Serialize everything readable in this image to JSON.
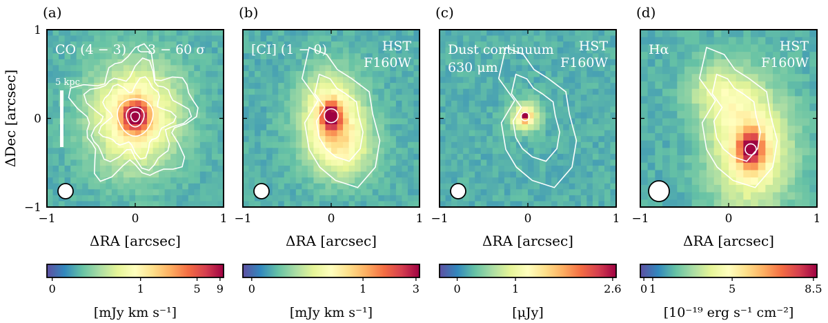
{
  "panels": [
    {
      "letter": "(a)",
      "label_lines": [
        "CO (4 − 3)",
        "3 − 60 σ"
      ],
      "right_lines": [],
      "scalebar": "5 kpc",
      "peak": [
        0.0,
        0.02
      ],
      "extent": [
        0.62,
        0.72
      ],
      "lobe": [
        0.0,
        0.0
      ],
      "cbar_ticks": [
        "0",
        "1",
        "5",
        "9"
      ],
      "cbar_tick_pos": [
        0.03,
        0.53,
        0.85,
        0.98
      ],
      "cbar_label": "[mJy km s⁻¹]",
      "colormap": "Spectral_r"
    },
    {
      "letter": "(b)",
      "label_lines": [
        "[CI] (1 − 0)"
      ],
      "right_lines": [
        "HST",
        "F160W"
      ],
      "scalebar": "",
      "peak": [
        0.0,
        0.03
      ],
      "extent": [
        0.42,
        0.58
      ],
      "lobe": [
        0.15,
        -0.35
      ],
      "cbar_ticks": [
        "0",
        "1",
        "3"
      ],
      "cbar_tick_pos": [
        0.05,
        0.68,
        0.98
      ],
      "cbar_label": "[mJy km s⁻¹]",
      "colormap": "Spectral_r"
    },
    {
      "letter": "(c)",
      "label_lines": [
        "Dust continuum",
        "630 μm"
      ],
      "right_lines": [
        "HST",
        "F160W"
      ],
      "scalebar": "",
      "peak": [
        -0.03,
        0.02
      ],
      "extent": [
        0.2,
        0.2
      ],
      "lobe": [
        0.0,
        0.0
      ],
      "cbar_ticks": [
        "0",
        "1",
        "2.6"
      ],
      "cbar_tick_pos": [
        0.1,
        0.43,
        0.98
      ],
      "cbar_label": "[μJy]",
      "colormap": "Spectral_r"
    },
    {
      "letter": "(d)",
      "label_lines": [
        "Hα"
      ],
      "right_lines": [
        "HST",
        "F160W"
      ],
      "scalebar": "",
      "peak": [
        0.25,
        -0.35
      ],
      "extent": [
        0.55,
        0.8
      ],
      "lobe": [
        -0.1,
        0.3
      ],
      "cbar_ticks": [
        "0",
        "1",
        "5",
        "8.5"
      ],
      "cbar_tick_pos": [
        0.02,
        0.07,
        0.52,
        0.98
      ],
      "cbar_label": "[10⁻¹⁹ erg s⁻¹ cm⁻²]",
      "colormap": "Spectral_r"
    }
  ],
  "axes": {
    "xlabel": "ΔRA [arcsec]",
    "ylabel": "ΔDec [arcsec]",
    "xticks": [
      "−1",
      "0",
      "1"
    ],
    "yticks": [
      "1",
      "0",
      "−1"
    ],
    "range": [
      -1,
      1
    ]
  }
}
